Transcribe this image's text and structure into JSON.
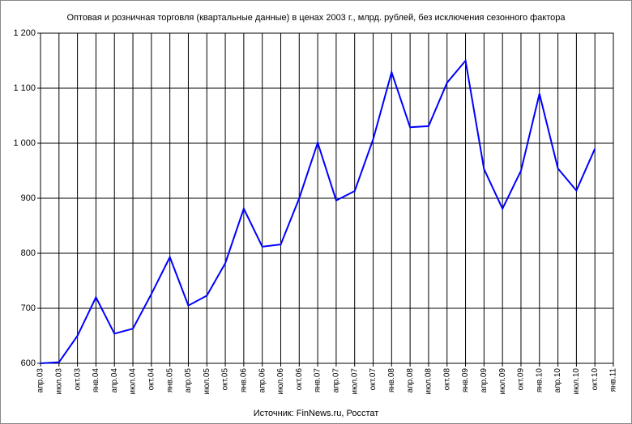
{
  "chart_data": {
    "type": "line",
    "title": "Оптовая и розничная торговля (квартальные данные) в ценах 2003 г., млрд. рублей, без исключения сезонного фактора",
    "source": "Источник: FinNews.ru, Росстат",
    "categories": [
      "апр.03",
      "июл.03",
      "окт.03",
      "янв.04",
      "апр.04",
      "июл.04",
      "окт.04",
      "янв.05",
      "апр.05",
      "июл.05",
      "окт.05",
      "янв.06",
      "апр.06",
      "июл.06",
      "окт.06",
      "янв.07",
      "апр.07",
      "июл.07",
      "окт.07",
      "янв.08",
      "апр.08",
      "июл.08",
      "окт.08",
      "янв.09",
      "апр.09",
      "июл.09",
      "окт.09",
      "янв.10",
      "апр.10",
      "июл.10",
      "окт.10",
      "янв.11"
    ],
    "series": [
      {
        "name": "Оптовая и розничная торговля",
        "color": "#0000ff",
        "values": [
          600,
          602,
          650,
          720,
          654,
          663,
          726,
          793,
          705,
          723,
          782,
          881,
          812,
          816,
          900,
          1001,
          896,
          913,
          1007,
          1129,
          1029,
          1031,
          1110,
          1150,
          953,
          881,
          950,
          1090,
          954,
          914,
          990,
          null
        ]
      }
    ],
    "ylim": [
      600,
      1200
    ],
    "yticks": [
      600,
      700,
      800,
      900,
      {
        "value": 1000,
        "label": "1 000"
      },
      {
        "value": 1100,
        "label": "1 100"
      },
      {
        "value": 1200,
        "label": "1 200"
      }
    ],
    "grid": true
  }
}
